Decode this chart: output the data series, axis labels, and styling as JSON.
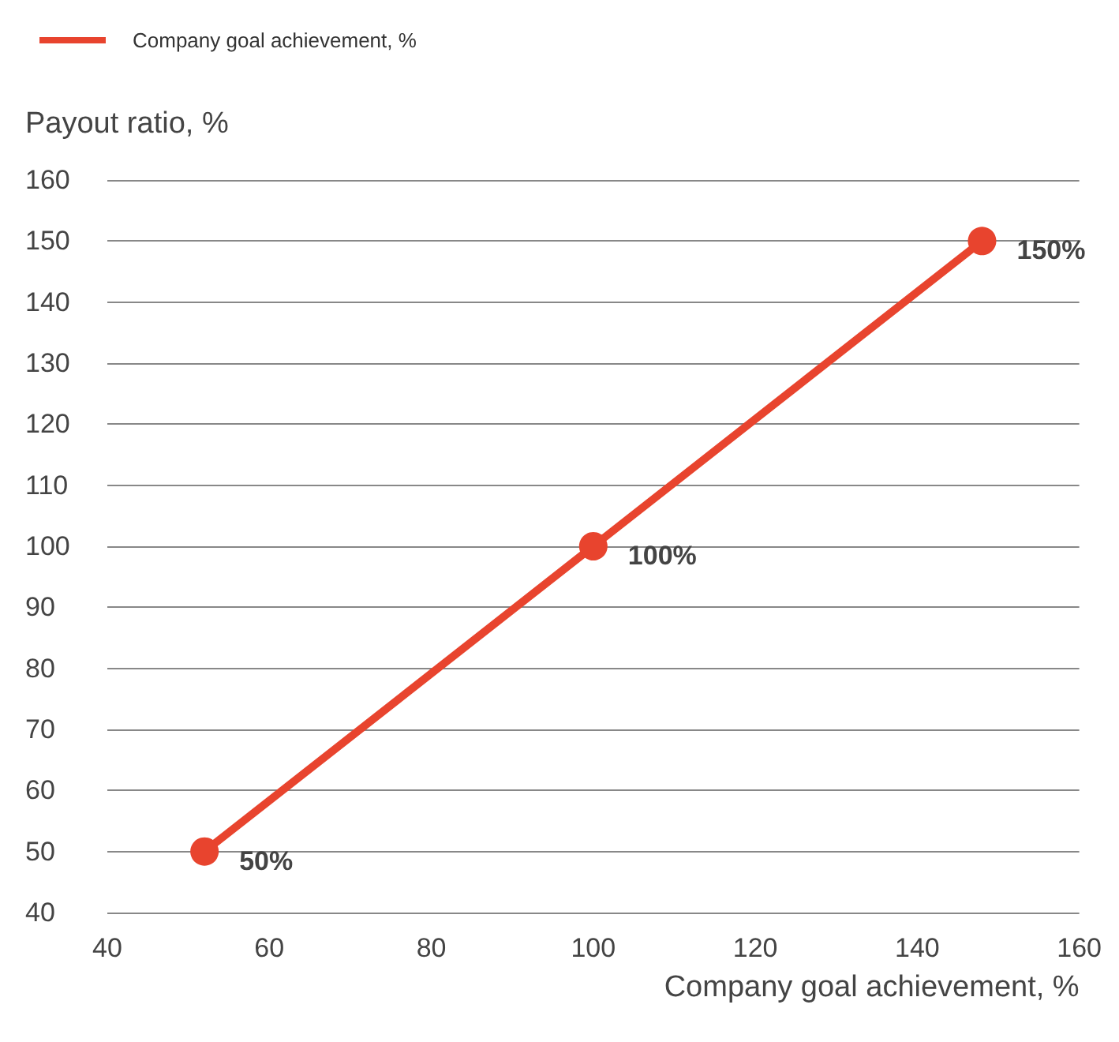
{
  "chart_data": {
    "type": "line",
    "xlabel": "Company goal achievement, %",
    "ylabel": "Payout ratio, %",
    "x": [
      52,
      100,
      148
    ],
    "series": [
      {
        "name": "Company goal achievement, %",
        "color": "#e8442e",
        "values": [
          50,
          100,
          150
        ],
        "value_labels": [
          "50%",
          "100%",
          "150%"
        ]
      }
    ],
    "xlim": [
      40,
      160
    ],
    "xticks": [
      40,
      60,
      80,
      100,
      120,
      140,
      160
    ],
    "ylim": [
      40,
      160
    ],
    "yticks": [
      40,
      50,
      60,
      70,
      80,
      90,
      100,
      110,
      120,
      130,
      140,
      150,
      160
    ],
    "grid": "y",
    "legend": "top left",
    "marker": "circle",
    "line_style": "solid"
  }
}
